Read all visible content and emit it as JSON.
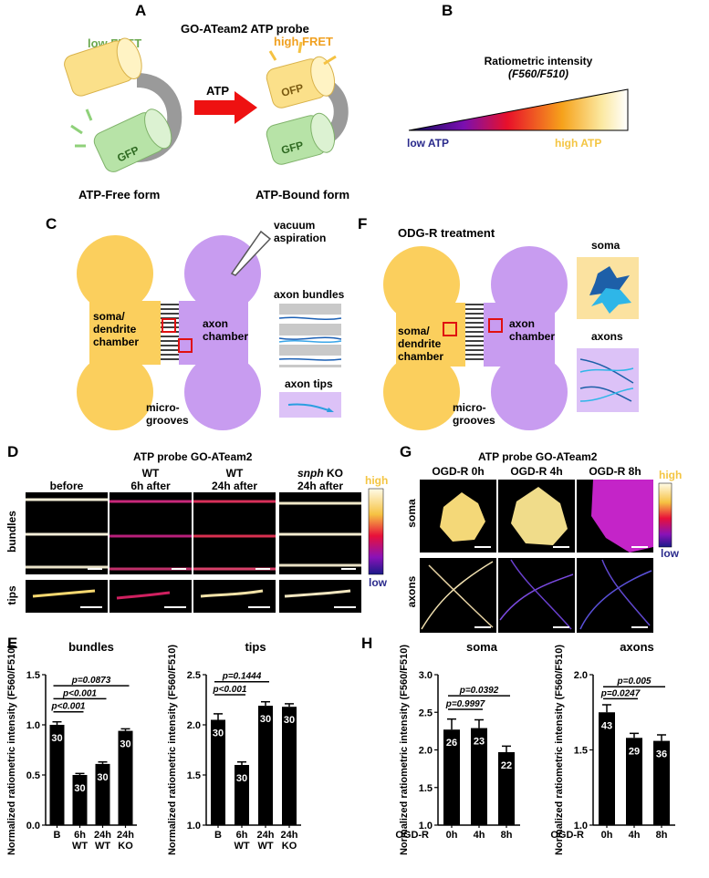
{
  "panel_letters": {
    "a": "A",
    "b": "B",
    "c": "C",
    "d": "D",
    "e": "E",
    "f": "F",
    "g": "G",
    "h": "H"
  },
  "panel_a": {
    "title": "GO-ATeam2 ATP probe",
    "low_fret": "low FRET",
    "high_fret": "high FRET",
    "atp": "ATP",
    "gfp": "GFP",
    "ofp": "OFP",
    "free_form": "ATP-Free form",
    "bound_form": "ATP-Bound form"
  },
  "panel_b": {
    "title_line1": "Ratiometric intensity",
    "title_line2": "(F560/F510)",
    "low": "low ATP",
    "high": "high ATP"
  },
  "panel_c": {
    "vacuum_line1": "vacuum",
    "vacuum_line2": "aspiration",
    "soma_line1": "soma/",
    "soma_line2": "dendrite",
    "soma_line3": "chamber",
    "axon_line1": "axon",
    "axon_line2": "chamber",
    "micro_line1": "micro-",
    "micro_line2": "grooves",
    "bundles": "axon bundles",
    "tips": "axon tips"
  },
  "panel_f": {
    "title": "ODG-R treatment",
    "soma": "soma",
    "axons": "axons"
  },
  "panel_d": {
    "title": "ATP probe GO-ATeam2",
    "cols": [
      "before",
      "WT\n6h after",
      "WT\n24h after",
      "snph KO\n24h after"
    ],
    "col_before": "before",
    "col2_l1": "WT",
    "col2_l2": "6h after",
    "col3_l1": "WT",
    "col3_l2": "24h after",
    "col4_l1a": "snph",
    "col4_l1b": " KO",
    "col4_l2": "24h after",
    "row_bundles": "bundles",
    "row_tips": "tips",
    "scale_high": "high",
    "scale_low": "low"
  },
  "panel_g": {
    "title": "ATP probe GO-ATeam2",
    "col1": "OGD-R 0h",
    "col2": "OGD-R 4h",
    "col3": "OGD-R 8h",
    "row_soma": "soma",
    "row_axons": "axons",
    "scale_high": "high",
    "scale_low": "low"
  },
  "colors": {
    "soma_chamber": "#fbcf5d",
    "axon_chamber": "#c89cf0",
    "cyan_gfp": "#b7e3a7",
    "yellow_ofp": "#fbe08a",
    "arrow": "#ee1111",
    "high_atp": "#f4c542",
    "low_atp": "#2a2a8c"
  },
  "chart_data": [
    {
      "type": "bar",
      "title": "bundles",
      "ylabel": "Normalized ratiometric intensity (F560/F510)",
      "categories": [
        "B",
        "6h WT",
        "24h WT",
        "24h KO"
      ],
      "values": [
        1.0,
        0.5,
        0.61,
        0.94
      ],
      "errors": [
        0.03,
        0.015,
        0.02,
        0.02
      ],
      "n_labels": [
        "30",
        "30",
        "30",
        "30"
      ],
      "ylim": [
        0,
        1.5
      ],
      "yticks": [
        "0.0",
        "0.5",
        "1.0",
        "1.5"
      ],
      "comparisons": [
        {
          "label": "p<0.001",
          "from": 0,
          "to": 1,
          "y": 1.13
        },
        {
          "label": "p<0.001",
          "from": 0,
          "to": 2,
          "y": 1.26
        },
        {
          "label": "p=0.0873",
          "from": 0,
          "to": 3,
          "y": 1.39
        }
      ]
    },
    {
      "type": "bar",
      "title": "tips",
      "ylabel": "Normalized ratiometric intensity (F560/F510)",
      "categories": [
        "B",
        "6h WT",
        "24h WT",
        "24h KO"
      ],
      "values": [
        2.05,
        1.6,
        2.19,
        2.18
      ],
      "errors": [
        0.06,
        0.03,
        0.04,
        0.03
      ],
      "n_labels": [
        "30",
        "30",
        "30",
        "30"
      ],
      "ylim": [
        1.0,
        2.5
      ],
      "yticks": [
        "1.0",
        "1.5",
        "2.0",
        "2.5"
      ],
      "comparisons": [
        {
          "label": "p<0.001",
          "from": 0,
          "to": 1,
          "y": 2.3
        },
        {
          "label": "p=0.1444",
          "from": 0,
          "to": 2,
          "y": 2.43
        }
      ]
    },
    {
      "type": "bar",
      "title": "soma",
      "ylabel": "Normalized ratiometric intensity (F560/F510)",
      "xprefix": "OGD-R",
      "categories": [
        "0h",
        "4h",
        "8h"
      ],
      "values": [
        2.27,
        2.29,
        1.97
      ],
      "errors": [
        0.14,
        0.11,
        0.08
      ],
      "n_labels": [
        "26",
        "23",
        "22"
      ],
      "ylim": [
        1.0,
        3.0
      ],
      "yticks": [
        "1.0",
        "1.5",
        "2.0",
        "2.5",
        "3.0"
      ],
      "comparisons": [
        {
          "label": "p=0.9997",
          "from": 0,
          "to": 1,
          "y": 2.54
        },
        {
          "label": "p=0.0392",
          "from": 0,
          "to": 2,
          "y": 2.72
        }
      ]
    },
    {
      "type": "bar",
      "title": "axons",
      "ylabel": "Normalized ratiometric intensity (F560/F510)",
      "xprefix": "OGD-R",
      "categories": [
        "0h",
        "4h",
        "8h"
      ],
      "values": [
        1.75,
        1.58,
        1.56
      ],
      "errors": [
        0.05,
        0.03,
        0.04
      ],
      "n_labels": [
        "43",
        "29",
        "36"
      ],
      "ylim": [
        1.0,
        2.0
      ],
      "yticks": [
        "1.0",
        "1.5",
        "2.0"
      ],
      "comparisons": [
        {
          "label": "p=0.0247",
          "from": 0,
          "to": 1,
          "y": 1.84
        },
        {
          "label": "p=0.005",
          "from": 0,
          "to": 2,
          "y": 1.92
        }
      ]
    }
  ]
}
